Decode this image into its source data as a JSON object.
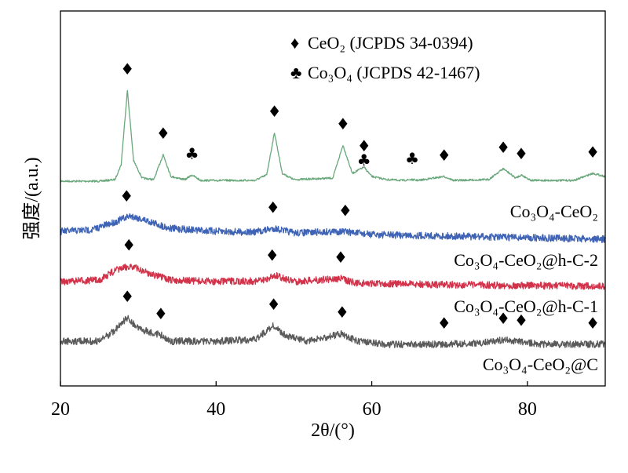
{
  "chart_data": {
    "type": "line",
    "title": "",
    "xlabel": "2θ/(°)",
    "ylabel": "强度/(a.u.)",
    "xlim": [
      20,
      90
    ],
    "xticks": [
      20,
      40,
      60,
      80
    ],
    "y_ticks_shown": false,
    "legend": {
      "position": "top-right",
      "entries": [
        {
          "symbol": "♦",
          "label": "CeO₂ (JCPDS 34-0394)"
        },
        {
          "symbol": "♣",
          "label": "Co₃O₄ (JCPDS 42-1467)"
        }
      ]
    },
    "series": [
      {
        "name": "Co₃O₄-CeO₂",
        "color": "#6aa87c",
        "baseline": 235,
        "noise": 1.2,
        "points": [
          [
            20,
            4
          ],
          [
            25,
            4
          ],
          [
            27,
            6
          ],
          [
            27.8,
            25
          ],
          [
            28.6,
            120
          ],
          [
            29.4,
            30
          ],
          [
            30.5,
            8
          ],
          [
            32,
            6
          ],
          [
            33.2,
            38
          ],
          [
            34.2,
            10
          ],
          [
            36,
            6
          ],
          [
            36.9,
            12
          ],
          [
            38,
            5
          ],
          [
            45,
            5
          ],
          [
            46.5,
            12
          ],
          [
            47.5,
            66
          ],
          [
            48.5,
            14
          ],
          [
            50,
            6
          ],
          [
            55,
            8
          ],
          [
            56.3,
            50
          ],
          [
            57.5,
            14
          ],
          [
            59,
            22
          ],
          [
            60,
            10
          ],
          [
            62,
            6
          ],
          [
            64,
            5
          ],
          [
            65,
            6
          ],
          [
            66,
            5
          ],
          [
            69.3,
            10
          ],
          [
            70.5,
            5
          ],
          [
            75,
            6
          ],
          [
            76.9,
            20
          ],
          [
            78.5,
            8
          ],
          [
            79.2,
            12
          ],
          [
            80.5,
            5
          ],
          [
            86,
            5
          ],
          [
            88.4,
            14
          ],
          [
            90,
            10
          ]
        ],
        "peak_markers": [
          {
            "x": 28.6,
            "symbol": "♦"
          },
          {
            "x": 33.2,
            "symbol": "♦"
          },
          {
            "x": 36.9,
            "symbol": "♣"
          },
          {
            "x": 47.5,
            "symbol": "♦"
          },
          {
            "x": 56.3,
            "symbol": "♦"
          },
          {
            "x": 59.0,
            "symbol": "♦"
          },
          {
            "x": 59.0,
            "symbol": "♣"
          },
          {
            "x": 65.2,
            "symbol": "♣"
          },
          {
            "x": 69.3,
            "symbol": "♦"
          },
          {
            "x": 76.9,
            "symbol": "♦"
          },
          {
            "x": 79.2,
            "symbol": "♦"
          },
          {
            "x": 88.4,
            "symbol": "♦"
          }
        ]
      },
      {
        "name": "Co₃O₄-CeO₂@h-C-2",
        "color": "#3f63b5",
        "baseline": 305,
        "noise": 4.5,
        "points": [
          [
            20,
            10
          ],
          [
            24,
            12
          ],
          [
            27,
            22
          ],
          [
            29,
            30
          ],
          [
            31,
            24
          ],
          [
            34,
            14
          ],
          [
            40,
            10
          ],
          [
            45,
            9
          ],
          [
            47.5,
            14
          ],
          [
            50,
            8
          ],
          [
            56,
            10
          ],
          [
            60,
            6
          ],
          [
            70,
            4
          ],
          [
            80,
            2
          ],
          [
            90,
            0
          ]
        ],
        "peak_markers": [
          {
            "x": 28.5,
            "symbol": "♦"
          },
          {
            "x": 47.3,
            "symbol": "♦"
          },
          {
            "x": 56.6,
            "symbol": "♦"
          }
        ]
      },
      {
        "name": "Co₃O₄-CeO₂@h-C-1",
        "color": "#d2334a",
        "baseline": 367,
        "noise": 4.5,
        "points": [
          [
            20,
            8
          ],
          [
            25,
            10
          ],
          [
            27,
            22
          ],
          [
            29,
            28
          ],
          [
            31,
            20
          ],
          [
            34,
            10
          ],
          [
            40,
            8
          ],
          [
            46,
            9
          ],
          [
            47.5,
            16
          ],
          [
            50,
            8
          ],
          [
            56,
            12
          ],
          [
            58,
            6
          ],
          [
            70,
            4
          ],
          [
            80,
            3
          ],
          [
            90,
            2
          ]
        ],
        "peak_markers": [
          {
            "x": 28.8,
            "symbol": "♦"
          },
          {
            "x": 47.2,
            "symbol": "♦"
          },
          {
            "x": 56.0,
            "symbol": "♦"
          }
        ]
      },
      {
        "name": "Co₃O₄-CeO₂@C",
        "color": "#5a5a5a",
        "baseline": 445,
        "noise": 4.5,
        "points": [
          [
            20,
            10
          ],
          [
            25,
            10
          ],
          [
            27,
            24
          ],
          [
            28.6,
            40
          ],
          [
            30,
            26
          ],
          [
            32.9,
            18
          ],
          [
            34,
            10
          ],
          [
            40,
            10
          ],
          [
            45,
            12
          ],
          [
            47.4,
            30
          ],
          [
            49,
            16
          ],
          [
            52,
            10
          ],
          [
            56.2,
            20
          ],
          [
            58,
            10
          ],
          [
            62,
            6
          ],
          [
            66,
            6
          ],
          [
            69,
            6
          ],
          [
            74,
            8
          ],
          [
            77,
            12
          ],
          [
            79,
            10
          ],
          [
            82,
            6
          ],
          [
            88.4,
            6
          ],
          [
            90,
            6
          ]
        ],
        "peak_markers": [
          {
            "x": 28.6,
            "symbol": "♦"
          },
          {
            "x": 32.9,
            "symbol": "♦"
          },
          {
            "x": 47.4,
            "symbol": "♦"
          },
          {
            "x": 56.2,
            "symbol": "♦"
          },
          {
            "x": 69.3,
            "symbol": "♦"
          },
          {
            "x": 76.9,
            "symbol": "♦"
          },
          {
            "x": 79.2,
            "symbol": "♦"
          },
          {
            "x": 88.4,
            "symbol": "♦"
          }
        ]
      }
    ]
  }
}
